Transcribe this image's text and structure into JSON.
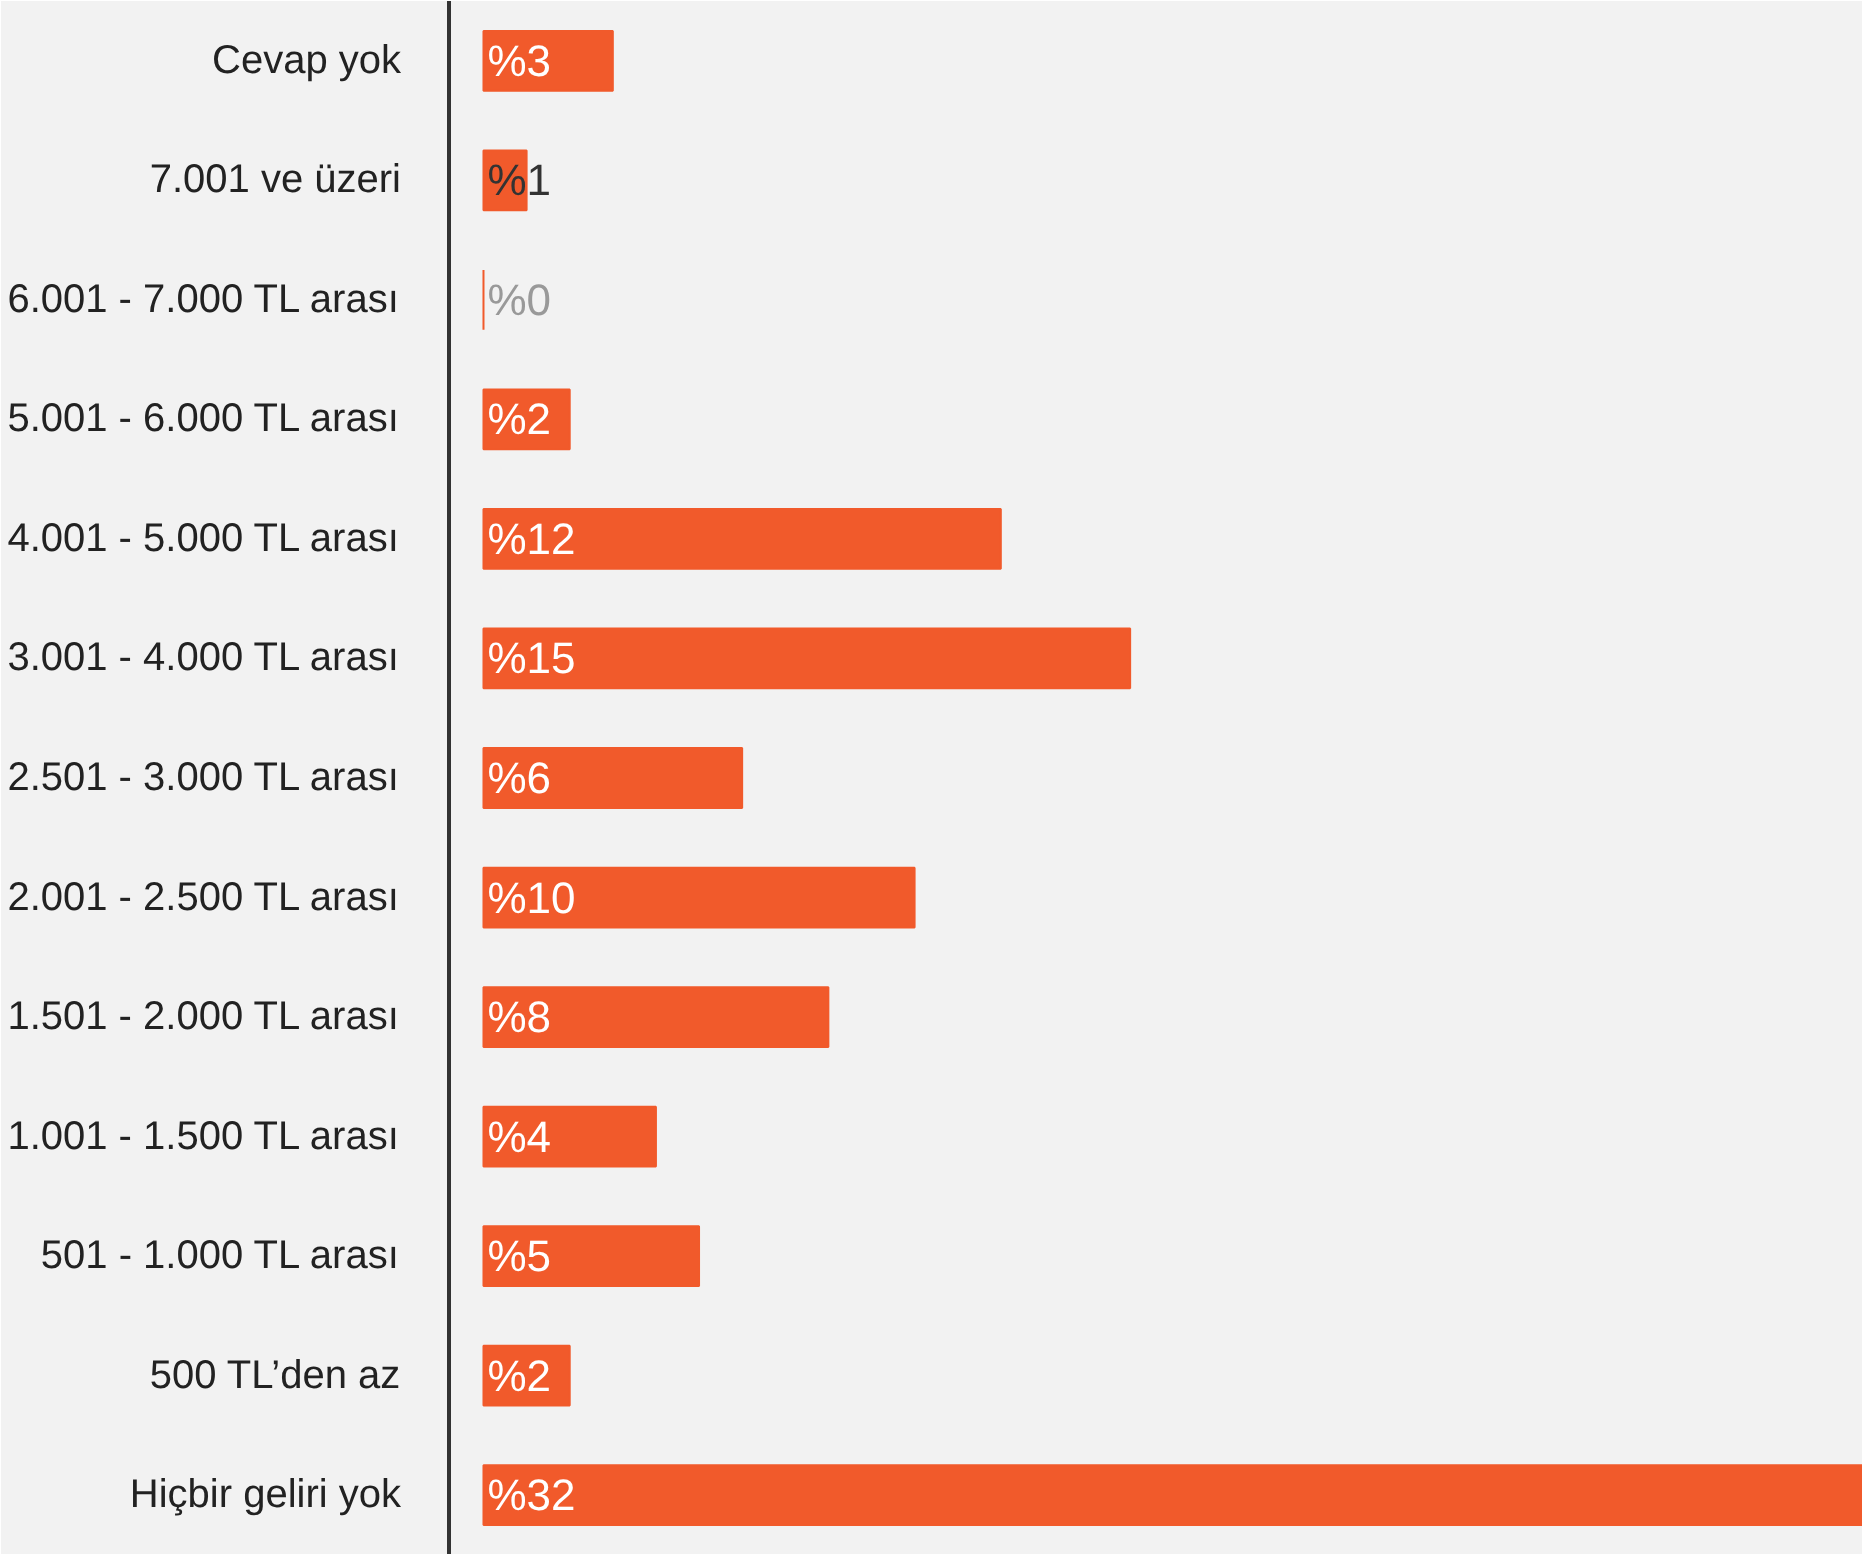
{
  "chart_data": {
    "type": "bar",
    "orientation": "horizontal",
    "categories": [
      "Cevap yok",
      "7.001 ve üzeri",
      "6.001 - 7.000 TL arası",
      "5.001 - 6.000 TL arası",
      "4.001 - 5.000 TL arası",
      "3.001 - 4.000 TL arası",
      "2.501 - 3.000 TL arası",
      "2.001 - 2.500 TL arası",
      "1.501 - 2.000 TL arası",
      "1.001 - 1.500 TL arası",
      "501 - 1.000 TL arası",
      "500 TL’den az",
      "Hiçbir geliri yok"
    ],
    "values": [
      3,
      1,
      0,
      2,
      12,
      15,
      6,
      10,
      8,
      4,
      5,
      2,
      32
    ],
    "value_labels": [
      "%3",
      "%1",
      "%0",
      "%2",
      "%12",
      "%15",
      "%6",
      "%10",
      "%8",
      "%4",
      "%5",
      "%2",
      "%32"
    ],
    "color": "#f15a2b"
  }
}
